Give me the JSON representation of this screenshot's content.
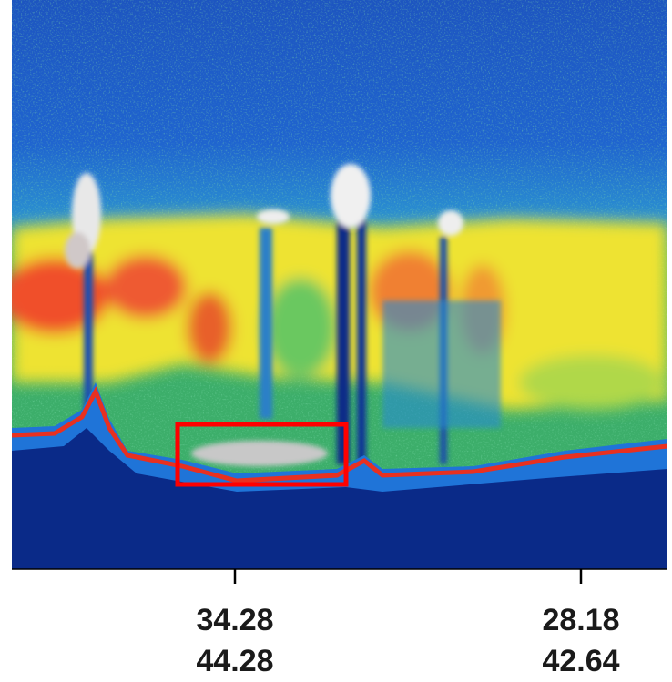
{
  "axis": {
    "ticks": [
      {
        "top": "34.28",
        "bottom": "44.28"
      },
      {
        "top": "28.18",
        "bottom": "42.64"
      }
    ]
  }
}
